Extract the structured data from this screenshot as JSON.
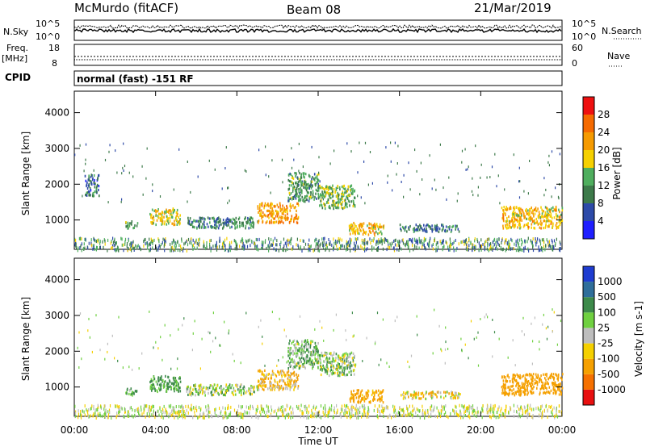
{
  "header": {
    "station": "McMurdo (fitACF)",
    "beam": "Beam 08",
    "date": "21/Mar/2019"
  },
  "noise_panel": {
    "left_label": "N.Sky",
    "right_label": "N.Search",
    "left_ticks": [
      "10^5",
      "10^0"
    ],
    "right_ticks": [
      "10^5",
      "10^0"
    ]
  },
  "freq_panel": {
    "left_label_1": "Freq.",
    "left_label_2": "[MHz]",
    "right_label": "Nave",
    "left_ticks": [
      "18",
      "8"
    ],
    "right_ticks": [
      "60",
      "0"
    ]
  },
  "cpid": {
    "label": "CPID",
    "mode": "normal (fast) -151 RF"
  },
  "x_axis": {
    "label": "Time UT",
    "ticks": [
      "00:00",
      "04:00",
      "08:00",
      "12:00",
      "16:00",
      "20:00",
      "00:00"
    ]
  },
  "power_colorbar": {
    "label": "Power [dB]",
    "ticks": [
      "4",
      "8",
      "12",
      "16",
      "20",
      "24",
      "28"
    ],
    "colors": [
      "#1e1eff",
      "#2d4aa8",
      "#3d7a4a",
      "#4fae5e",
      "#f5d000",
      "#f59a00",
      "#f56a00",
      "#ee1010"
    ]
  },
  "velocity_colorbar": {
    "label": "Velocity [m s-1]",
    "ticks": [
      "1000",
      "500",
      "100",
      "25",
      "-25",
      "-100",
      "-500",
      "-1000"
    ],
    "colors": [
      "#1e3cd0",
      "#2f6e9a",
      "#3d8a4a",
      "#6fd040",
      "#bdbdbd",
      "#f5d000",
      "#f5a000",
      "#f57000",
      "#e81010"
    ]
  },
  "chart_data": [
    {
      "type": "heatmap",
      "title": "",
      "xlabel": "Time UT",
      "ylabel": "Slant Range [km]",
      "xlim": [
        0,
        24
      ],
      "ylim": [
        180,
        4600
      ],
      "yticks": [
        1000,
        2000,
        3000,
        4000
      ],
      "colorbar": "Power [dB]",
      "features": [
        {
          "t_start": 0.5,
          "t_end": 1.2,
          "r_start": 1700,
          "r_end": 2300,
          "level": 8
        },
        {
          "t_start": 2.5,
          "t_end": 3.1,
          "r_start": 800,
          "r_end": 1000,
          "level": 12
        },
        {
          "t_start": 3.7,
          "t_end": 5.2,
          "r_start": 900,
          "r_end": 1350,
          "level": 18
        },
        {
          "t_start": 5.5,
          "t_end": 9.0,
          "r_start": 800,
          "r_end": 1100,
          "level": 10
        },
        {
          "t_start": 9.0,
          "t_end": 11.0,
          "r_start": 950,
          "r_end": 1500,
          "level": 22
        },
        {
          "t_start": 10.5,
          "t_end": 12.0,
          "r_start": 1550,
          "r_end": 2350,
          "level": 12
        },
        {
          "t_start": 12.0,
          "t_end": 13.8,
          "r_start": 1350,
          "r_end": 2000,
          "level": 14
        },
        {
          "t_start": 13.5,
          "t_end": 15.2,
          "r_start": 600,
          "r_end": 950,
          "level": 20
        },
        {
          "t_start": 16.0,
          "t_end": 19.0,
          "r_start": 700,
          "r_end": 900,
          "level": 9
        },
        {
          "t_start": 21.0,
          "t_end": 24.0,
          "r_start": 800,
          "r_end": 1400,
          "level": 20
        }
      ]
    },
    {
      "type": "heatmap",
      "title": "",
      "xlabel": "Time UT",
      "ylabel": "Slant Range [km]",
      "xlim": [
        0,
        24
      ],
      "ylim": [
        180,
        4600
      ],
      "yticks": [
        1000,
        2000,
        3000,
        4000
      ],
      "colorbar": "Velocity [m s-1]",
      "features": [
        {
          "t_start": 2.5,
          "t_end": 3.1,
          "r_start": 800,
          "r_end": 1000,
          "velocity": 100
        },
        {
          "t_start": 3.7,
          "t_end": 5.2,
          "r_start": 900,
          "r_end": 1350,
          "velocity": 150
        },
        {
          "t_start": 5.5,
          "t_end": 9.0,
          "r_start": 800,
          "r_end": 1100,
          "velocity": 50
        },
        {
          "t_start": 9.0,
          "t_end": 11.0,
          "r_start": 950,
          "r_end": 1500,
          "velocity": -100
        },
        {
          "t_start": 10.5,
          "t_end": 12.0,
          "r_start": 1550,
          "r_end": 2350,
          "velocity": 80
        },
        {
          "t_start": 12.0,
          "t_end": 13.8,
          "r_start": 1350,
          "r_end": 2000,
          "velocity": 60
        },
        {
          "t_start": 13.5,
          "t_end": 15.2,
          "r_start": 600,
          "r_end": 950,
          "velocity": -200
        },
        {
          "t_start": 16.0,
          "t_end": 19.0,
          "r_start": 700,
          "r_end": 900,
          "velocity": -50
        },
        {
          "t_start": 21.0,
          "t_end": 24.0,
          "r_start": 800,
          "r_end": 1400,
          "velocity": -300
        }
      ]
    }
  ]
}
